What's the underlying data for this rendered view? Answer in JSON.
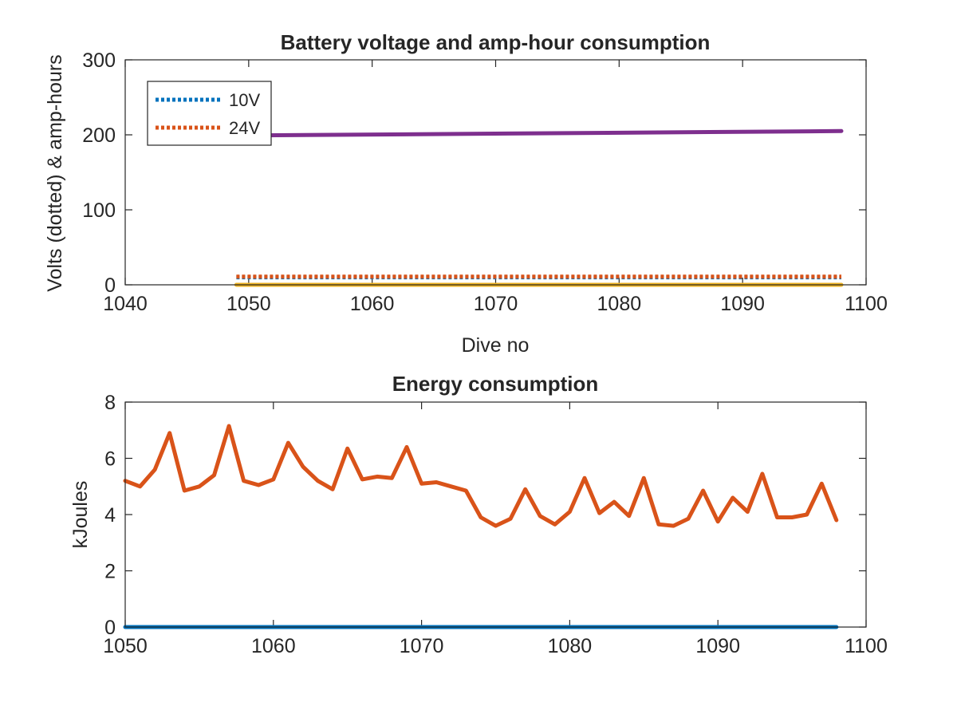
{
  "chart_data": [
    {
      "type": "line",
      "title": "Battery voltage and amp-hour consumption",
      "xlabel": "Dive no",
      "ylabel": "Volts (dotted) & amp-hours",
      "xlim": [
        1040,
        1100
      ],
      "ylim": [
        0,
        300
      ],
      "xticks": [
        1040,
        1050,
        1060,
        1070,
        1080,
        1090,
        1100
      ],
      "yticks": [
        0,
        100,
        200,
        300
      ],
      "grid": false,
      "legend_position": "top-left",
      "series": [
        {
          "name": "10V",
          "style": "dotted",
          "color": "#0072BD",
          "x": [
            1049,
            1098
          ],
          "y": [
            10,
            10
          ]
        },
        {
          "name": "24V",
          "style": "dotted",
          "color": "#D95319",
          "x": [
            1049,
            1098
          ],
          "y": [
            11,
            11
          ]
        },
        {
          "style": "solid",
          "color": "#7E2F8E",
          "x": [
            1049,
            1098
          ],
          "y": [
            199,
            205
          ]
        },
        {
          "style": "solid",
          "color": "#EDB120",
          "x": [
            1049,
            1098
          ],
          "y": [
            0,
            0
          ]
        }
      ]
    },
    {
      "type": "line",
      "title": "Energy consumption",
      "xlabel": "",
      "ylabel": "kJoules",
      "xlim": [
        1050,
        1100
      ],
      "ylim": [
        0,
        8
      ],
      "xticks": [
        1050,
        1060,
        1070,
        1080,
        1090,
        1100
      ],
      "yticks": [
        0,
        2,
        4,
        6,
        8
      ],
      "grid": false,
      "series": [
        {
          "style": "solid",
          "color": "#0072BD",
          "x": [
            1050,
            1098
          ],
          "y": [
            0,
            0
          ]
        },
        {
          "style": "solid",
          "color": "#D95319",
          "x": [
            1050,
            1051,
            1052,
            1053,
            1054,
            1055,
            1056,
            1057,
            1058,
            1059,
            1060,
            1061,
            1062,
            1063,
            1064,
            1065,
            1066,
            1067,
            1068,
            1069,
            1070,
            1071,
            1072,
            1073,
            1074,
            1075,
            1076,
            1077,
            1078,
            1079,
            1080,
            1081,
            1082,
            1083,
            1084,
            1085,
            1086,
            1087,
            1088,
            1089,
            1090,
            1091,
            1092,
            1093,
            1094,
            1095,
            1096,
            1097,
            1098
          ],
          "y": [
            5.2,
            5.0,
            5.6,
            6.9,
            4.85,
            5.0,
            5.4,
            7.15,
            5.2,
            5.05,
            5.25,
            6.55,
            5.7,
            5.2,
            4.9,
            6.35,
            5.25,
            5.35,
            5.3,
            6.4,
            5.1,
            5.15,
            5.0,
            4.85,
            3.9,
            3.6,
            3.85,
            4.9,
            3.95,
            3.65,
            4.1,
            5.3,
            4.05,
            4.45,
            3.95,
            5.3,
            3.65,
            3.6,
            3.85,
            4.85,
            3.75,
            4.6,
            4.1,
            5.45,
            3.9,
            3.9,
            4.0,
            5.1,
            3.8
          ]
        }
      ]
    }
  ]
}
